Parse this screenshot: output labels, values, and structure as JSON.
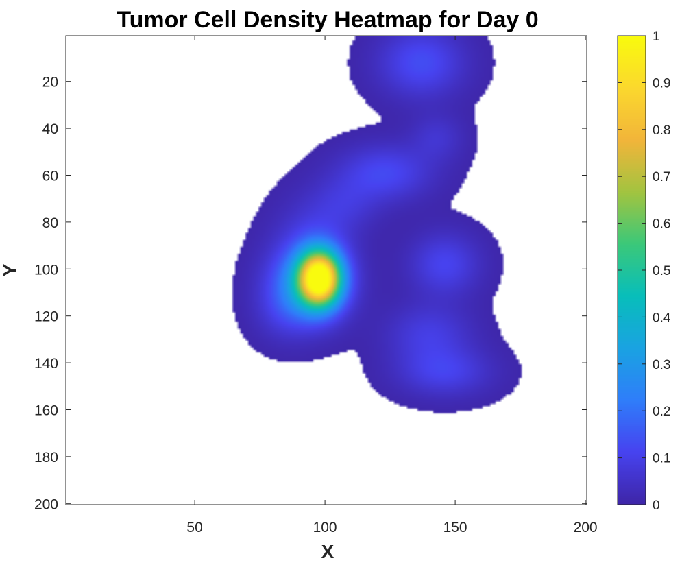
{
  "chart_data": {
    "type": "heatmap",
    "title": "Tumor Cell Density Heatmap for Day 0",
    "xlabel": "X",
    "ylabel": "Y",
    "xlim": [
      1,
      200
    ],
    "ylim": [
      1,
      200
    ],
    "y_direction": "reversed",
    "grid": false,
    "colormap": "parula",
    "colormap_stops": [
      "#3e26a8",
      "#4743f0",
      "#2f7efa",
      "#1aa3e2",
      "#08bebb",
      "#3bc87a",
      "#a2c440",
      "#f2b53a",
      "#fbd82e",
      "#f9fb0e"
    ],
    "background_below_threshold": "#ffffff",
    "threshold": 0.005,
    "x_ticks": [
      50,
      100,
      150,
      200
    ],
    "x_tick_labels": [
      "50",
      "100",
      "150",
      "200"
    ],
    "y_ticks": [
      20,
      40,
      60,
      80,
      100,
      120,
      140,
      160,
      180,
      200
    ],
    "y_tick_labels": [
      "20",
      "40",
      "60",
      "80",
      "100",
      "120",
      "140",
      "160",
      "180",
      "200"
    ],
    "colorbar": {
      "limits": [
        0,
        1
      ],
      "ticks": [
        0,
        0.1,
        0.2,
        0.3,
        0.4,
        0.5,
        0.6,
        0.7,
        0.8,
        0.9,
        1
      ],
      "tick_labels": [
        "0",
        "0.1",
        "0.2",
        "0.3",
        "0.4",
        "0.5",
        "0.6",
        "0.7",
        "0.8",
        "0.9",
        "1"
      ]
    },
    "density_sources": [
      {
        "x": 98,
        "y": 104,
        "peak": 0.93,
        "sigma_x": 5.5,
        "sigma_y": 8
      },
      {
        "x": 94,
        "y": 106,
        "peak": 0.3,
        "sigma_x": 10,
        "sigma_y": 11
      },
      {
        "x": 85,
        "y": 118,
        "peak": 0.06,
        "sigma_x": 8,
        "sigma_y": 9
      },
      {
        "x": 96,
        "y": 86,
        "peak": 0.07,
        "sigma_x": 10,
        "sigma_y": 12
      },
      {
        "x": 108,
        "y": 72,
        "peak": 0.06,
        "sigma_x": 9,
        "sigma_y": 8
      },
      {
        "x": 123,
        "y": 59,
        "peak": 0.12,
        "sigma_x": 12,
        "sigma_y": 8
      },
      {
        "x": 143,
        "y": 44,
        "peak": 0.06,
        "sigma_x": 7,
        "sigma_y": 7
      },
      {
        "x": 137,
        "y": 12,
        "peak": 0.13,
        "sigma_x": 11,
        "sigma_y": 10
      },
      {
        "x": 146,
        "y": 98,
        "peak": 0.11,
        "sigma_x": 9,
        "sigma_y": 9
      },
      {
        "x": 140,
        "y": 128,
        "peak": 0.09,
        "sigma_x": 11,
        "sigma_y": 9
      },
      {
        "x": 146,
        "y": 144,
        "peak": 0.1,
        "sigma_x": 12,
        "sigma_y": 7
      }
    ]
  }
}
